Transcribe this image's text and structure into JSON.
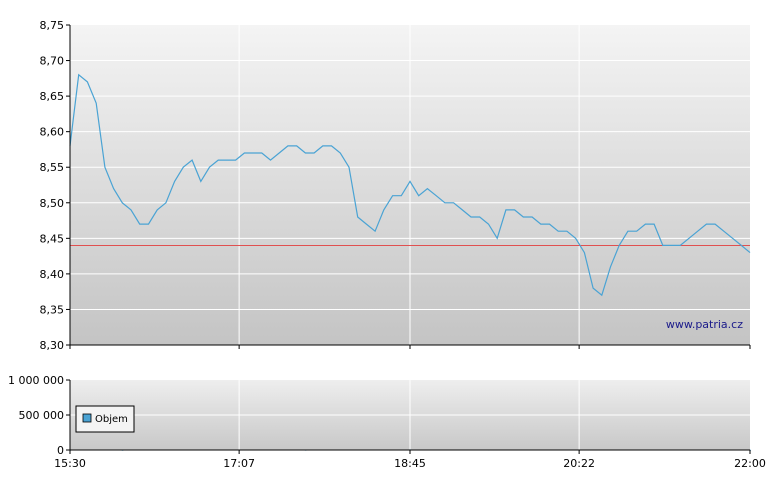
{
  "watermark": "www.patria.cz",
  "colors": {
    "price_line": "#4aa3d4",
    "reference_line": "#e05050",
    "axis": "#000000",
    "grid": "#ffffff",
    "plot_bg_top": "#f4f4f4",
    "plot_bg_bottom": "#c4c4c4",
    "volume_bar": "#4aa3d4",
    "legend_swatch": "#4aa3d4"
  },
  "chart_data": [
    {
      "type": "line",
      "name": "price",
      "x_tick_labels": [
        "15:30",
        "17:07",
        "18:45",
        "20:22",
        "22:00"
      ],
      "y_tick_labels": [
        "8,75",
        "8,70",
        "8,65",
        "8,60",
        "8,55",
        "8,50",
        "8,45",
        "8,40",
        "8,35",
        "8,30"
      ],
      "ylim": [
        8.3,
        8.75
      ],
      "xlim": [
        "15:30",
        "22:00"
      ],
      "grid": true,
      "reference_line": 8.44,
      "x": [
        "15:30",
        "15:35",
        "15:40",
        "15:45",
        "15:50",
        "15:55",
        "16:00",
        "16:05",
        "16:10",
        "16:15",
        "16:20",
        "16:25",
        "16:30",
        "16:35",
        "16:40",
        "16:45",
        "16:50",
        "16:55",
        "17:00",
        "17:05",
        "17:10",
        "17:15",
        "17:20",
        "17:25",
        "17:30",
        "17:35",
        "17:40",
        "17:45",
        "17:50",
        "17:55",
        "18:00",
        "18:05",
        "18:10",
        "18:15",
        "18:20",
        "18:25",
        "18:30",
        "18:35",
        "18:40",
        "18:45",
        "18:50",
        "18:55",
        "19:00",
        "19:05",
        "19:10",
        "19:15",
        "19:20",
        "19:25",
        "19:30",
        "19:35",
        "19:40",
        "19:45",
        "19:50",
        "19:55",
        "20:00",
        "20:05",
        "20:10",
        "20:15",
        "20:20",
        "20:25",
        "20:30",
        "20:35",
        "20:40",
        "20:45",
        "20:50",
        "20:55",
        "21:00",
        "21:05",
        "21:10",
        "21:15",
        "21:20",
        "21:25",
        "21:30",
        "21:35",
        "21:40",
        "21:45",
        "21:50",
        "21:55",
        "22:00"
      ],
      "values": [
        8.58,
        8.68,
        8.67,
        8.64,
        8.55,
        8.52,
        8.5,
        8.49,
        8.47,
        8.47,
        8.49,
        8.5,
        8.53,
        8.55,
        8.56,
        8.53,
        8.55,
        8.56,
        8.56,
        8.56,
        8.57,
        8.57,
        8.57,
        8.56,
        8.57,
        8.58,
        8.58,
        8.57,
        8.57,
        8.58,
        8.58,
        8.57,
        8.55,
        8.48,
        8.47,
        8.46,
        8.49,
        8.51,
        8.51,
        8.53,
        8.51,
        8.52,
        8.51,
        8.5,
        8.5,
        8.49,
        8.48,
        8.48,
        8.47,
        8.45,
        8.49,
        8.49,
        8.48,
        8.48,
        8.47,
        8.47,
        8.46,
        8.46,
        8.45,
        8.43,
        8.38,
        8.37,
        8.41,
        8.44,
        8.46,
        8.46,
        8.47,
        8.47,
        8.44,
        8.44,
        8.44,
        8.45,
        8.46,
        8.47,
        8.47,
        8.46,
        8.45,
        8.44,
        8.43
      ]
    },
    {
      "type": "bar",
      "name": "volume",
      "legend": [
        "Objem"
      ],
      "legend_position": "top-left",
      "y_tick_labels": [
        "1 000 000",
        "500 000",
        "0"
      ],
      "ylim": [
        0,
        1000000
      ],
      "grid": true,
      "x": [
        "15:30",
        "16:00",
        "17:07",
        "17:45",
        "18:45",
        "19:00",
        "19:30",
        "20:00",
        "20:22",
        "21:00",
        "21:40",
        "22:00"
      ],
      "values": [
        2000,
        1500,
        3000,
        2500,
        9000,
        6000,
        4000,
        5000,
        3000,
        4500,
        6000,
        3500
      ]
    }
  ]
}
